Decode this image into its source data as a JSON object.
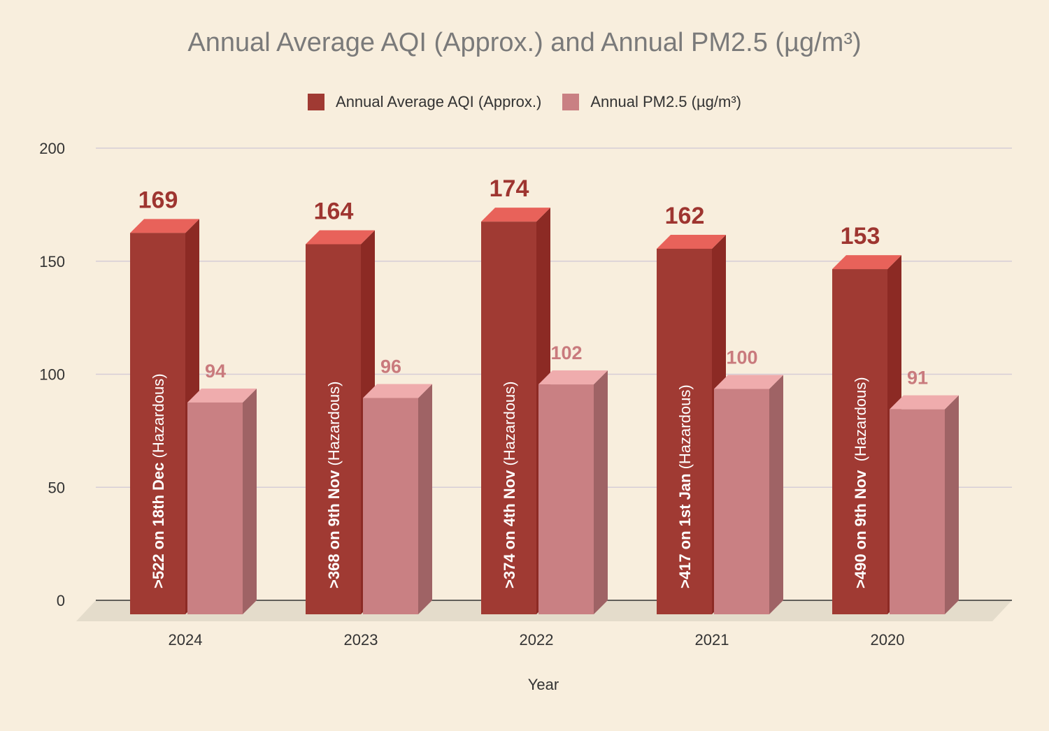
{
  "chart_data": {
    "type": "bar",
    "title": "Annual Average AQI (Approx.) and Annual PM2.5 (µg/m³)",
    "xlabel": "Year",
    "ylabel": "",
    "ylim": [
      0,
      200
    ],
    "yticks": [
      "0",
      "50",
      "100",
      "150",
      "200"
    ],
    "categories": [
      "2024",
      "2023",
      "2022",
      "2021",
      "2020"
    ],
    "series": [
      {
        "name": "Annual Average AQI (Approx.)",
        "values": [
          169,
          164,
          174,
          162,
          153
        ],
        "color": "#a03a33"
      },
      {
        "name": "Annual PM2.5 (µg/m³)",
        "values": [
          94,
          96,
          102,
          100,
          91
        ],
        "color": "#c98083"
      }
    ],
    "annotations": [
      {
        "bold": ">522 on 18th Dec",
        "rest": " (Hazardous)"
      },
      {
        "bold": ">368 on 9th Nov",
        "rest": " (Hazardous)"
      },
      {
        "bold": ">374 on 4th Nov",
        "rest": " (Hazardous)"
      },
      {
        "bold": ">417 on 1st Jan",
        "rest": " (Hazardous)"
      },
      {
        "bold": ">490 on 9th Nov",
        "rest": "  (Hazardous)"
      }
    ],
    "grid": true,
    "legend_position": "top-center",
    "background": "#f8eedd"
  }
}
